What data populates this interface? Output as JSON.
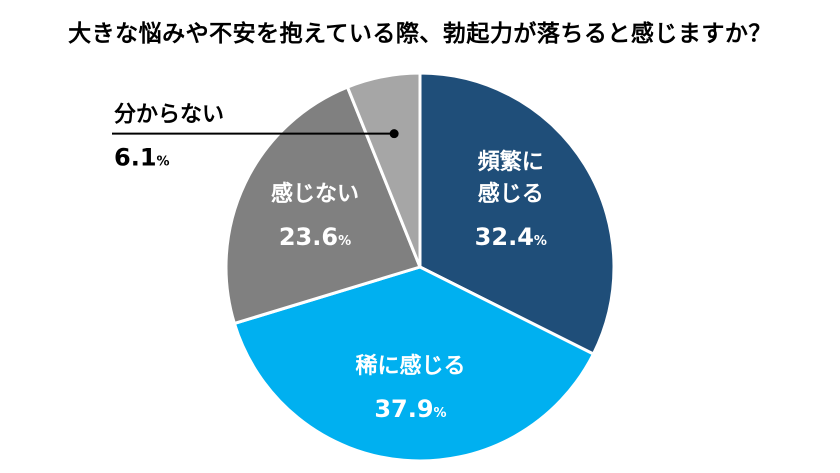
{
  "chart_data": {
    "type": "pie",
    "title": "大きな悩みや不安を抱えている際、勃起力が落ちると感じますか？",
    "unit": "%",
    "slices": [
      {
        "label": "頻繁に感じる",
        "label_lines": [
          "頻繁に",
          "感じる"
        ],
        "value": 32.4,
        "color": "#1f4e79"
      },
      {
        "label": "稀に感じる",
        "label_lines": [
          "稀に感じる"
        ],
        "value": 37.9,
        "color": "#00b0f0"
      },
      {
        "label": "感じない",
        "label_lines": [
          "感じない"
        ],
        "value": 23.6,
        "color": "#808080"
      },
      {
        "label": "分からない",
        "label_lines": [
          "分からない"
        ],
        "value": 6.1,
        "color": "#a6a6a6"
      }
    ],
    "legend": "none",
    "callout": "分からない slice labeled outside with leader line"
  }
}
